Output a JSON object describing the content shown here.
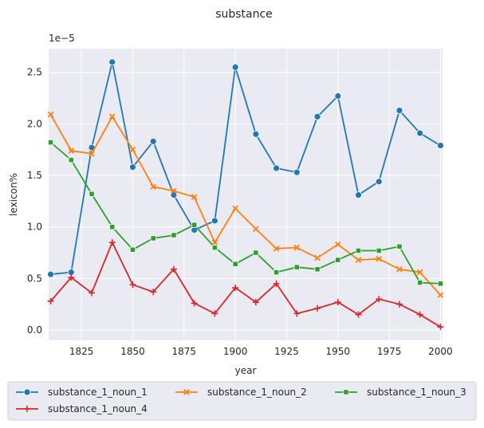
{
  "chart_data": {
    "type": "line",
    "title": "substance",
    "xlabel": "year",
    "ylabel": "lexicon%",
    "y_scale_note": "1e−5",
    "xlim": [
      1809,
      2001
    ],
    "ylim": [
      -0.1,
      2.73
    ],
    "x_ticks": [
      1825,
      1850,
      1875,
      1900,
      1925,
      1950,
      1975,
      2000
    ],
    "y_ticks": [
      0.0,
      0.5,
      1.0,
      1.5,
      2.0,
      2.5
    ],
    "x_tick_labels": [
      "1825",
      "1850",
      "1875",
      "1900",
      "1925",
      "1950",
      "1975",
      "2000"
    ],
    "y_tick_labels": [
      "0.0",
      "0.5",
      "1.0",
      "1.5",
      "2.0",
      "2.5"
    ],
    "grid": true,
    "legend_position": "bottom",
    "x": [
      1810,
      1820,
      1830,
      1840,
      1850,
      1860,
      1870,
      1880,
      1890,
      1900,
      1910,
      1920,
      1930,
      1940,
      1950,
      1960,
      1970,
      1980,
      1990,
      2000
    ],
    "series": [
      {
        "name": "substance_1_noun_1",
        "color": "#1f77b4",
        "marker": "circle",
        "values": [
          0.54,
          0.56,
          1.77,
          2.6,
          1.58,
          1.83,
          1.31,
          0.97,
          1.06,
          2.55,
          1.9,
          1.57,
          1.53,
          2.07,
          2.27,
          1.31,
          1.44,
          2.13,
          1.91,
          1.79
        ]
      },
      {
        "name": "substance_1_noun_2",
        "color": "#ff7f0e",
        "marker": "x",
        "values": [
          2.09,
          1.74,
          1.71,
          2.07,
          1.75,
          1.39,
          1.35,
          1.29,
          0.85,
          1.18,
          0.98,
          0.79,
          0.8,
          0.7,
          0.83,
          0.68,
          0.69,
          0.59,
          0.56,
          0.34
        ]
      },
      {
        "name": "substance_1_noun_3",
        "color": "#2ca02c",
        "marker": "square",
        "values": [
          1.82,
          1.65,
          1.32,
          1.0,
          0.78,
          0.89,
          0.92,
          1.02,
          0.8,
          0.64,
          0.75,
          0.56,
          0.61,
          0.59,
          0.68,
          0.77,
          0.77,
          0.81,
          0.46,
          0.45
        ]
      },
      {
        "name": "substance_1_noun_4",
        "color": "#d62728",
        "marker": "plus",
        "values": [
          0.28,
          0.51,
          0.36,
          0.85,
          0.44,
          0.37,
          0.59,
          0.26,
          0.16,
          0.41,
          0.27,
          0.45,
          0.16,
          0.21,
          0.27,
          0.15,
          0.3,
          0.25,
          0.15,
          0.03
        ]
      }
    ]
  }
}
